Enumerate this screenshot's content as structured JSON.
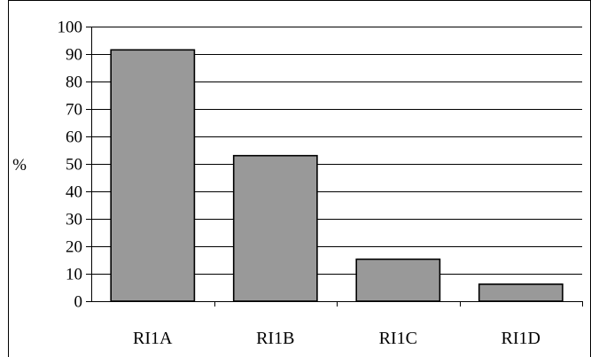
{
  "chart_data": {
    "type": "bar",
    "categories": [
      "RI1A",
      "RI1B",
      "RI1C",
      "RI1D"
    ],
    "values": [
      91.5,
      53,
      15.3,
      6.2
    ],
    "title": "",
    "xlabel": "",
    "ylabel": "%",
    "ylim": [
      0,
      100
    ],
    "yticks": [
      0,
      10,
      20,
      30,
      40,
      50,
      60,
      70,
      80,
      90,
      100
    ],
    "grid": true,
    "legend": "none",
    "bar_color": "#999999",
    "bar_edge_color": "#000000"
  }
}
